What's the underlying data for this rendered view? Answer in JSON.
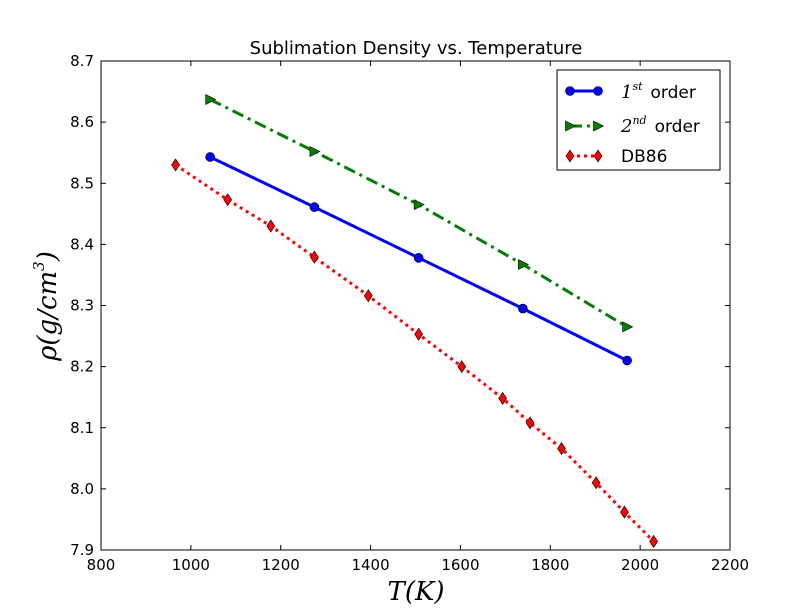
{
  "chart_data": {
    "type": "line",
    "title": "Sublimation Density vs. Temperature",
    "xlabel": {
      "italic": "T",
      "rest": "(K)"
    },
    "ylabel": {
      "base": "ρ(g/cm",
      "sup": "3",
      "close": ")"
    },
    "xlim": [
      800,
      2200
    ],
    "ylim": [
      7.9,
      8.7
    ],
    "xticks": [
      800,
      1000,
      1200,
      1400,
      1600,
      1800,
      2000,
      2200
    ],
    "yticks": [
      7.9,
      8.0,
      8.1,
      8.2,
      8.3,
      8.4,
      8.5,
      8.6,
      8.7
    ],
    "grid": false,
    "legend_position": "top-right",
    "series": [
      {
        "legend": {
          "num": "1",
          "sup": "st",
          "word": "order"
        },
        "color": "#0000ff",
        "linestyle": "solid",
        "marker": "circle",
        "x": [
          1043,
          1275,
          1507,
          1739,
          1971
        ],
        "y": [
          8.543,
          8.461,
          8.378,
          8.295,
          8.21
        ]
      },
      {
        "legend": {
          "num": "2",
          "sup": "nd",
          "word": "order"
        },
        "color": "#007f00",
        "linestyle": "dashdot",
        "marker": "triangle-right",
        "x": [
          1043,
          1275,
          1507,
          1739,
          1971
        ],
        "y": [
          8.637,
          8.552,
          8.465,
          8.367,
          8.265
        ]
      },
      {
        "legend": {
          "text": "DB86"
        },
        "color": "#ff0000",
        "linestyle": "dotted",
        "marker": "diamond",
        "x": [
          966,
          1082,
          1178,
          1275,
          1395,
          1507,
          1603,
          1694,
          1755,
          1825,
          1902,
          1965,
          2030
        ],
        "y": [
          8.53,
          8.473,
          8.43,
          8.379,
          8.316,
          8.253,
          8.2,
          8.148,
          8.108,
          8.066,
          8.01,
          7.962,
          7.914
        ]
      }
    ]
  }
}
